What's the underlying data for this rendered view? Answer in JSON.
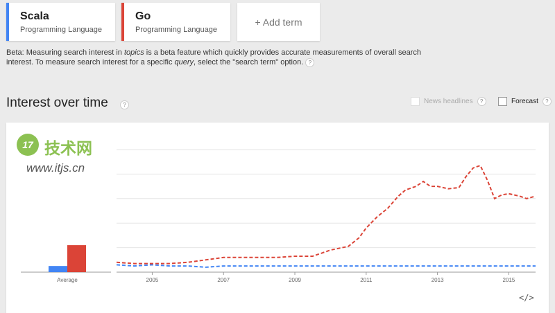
{
  "terms": [
    {
      "name": "Scala",
      "type": "Programming Language",
      "color": "#4285f4"
    },
    {
      "name": "Go",
      "type": "Programming Language",
      "color": "#db4437"
    }
  ],
  "add_term_label": "+ Add term",
  "beta_notice": {
    "prefix": "Beta: Measuring search interest in ",
    "em1": "topics",
    "mid": " is a beta feature which quickly provides accurate measurements of overall search interest. To measure search interest for a specific ",
    "em2": "query",
    "suffix": ", select the \"search term\" option."
  },
  "help_glyph": "?",
  "section_title": "Interest over time",
  "options": {
    "news_headlines": "News headlines",
    "forecast": "Forecast"
  },
  "watermark": {
    "badge": "17",
    "chinese": "技术网",
    "url": "www.itjs.cn"
  },
  "embed_icon": "</>",
  "chart_data": {
    "type": "line",
    "average_bars": {
      "label": "Average",
      "series": [
        {
          "name": "Scala",
          "value": 5
        },
        {
          "name": "Go",
          "value": 22
        }
      ]
    },
    "x_tick_labels": [
      "2005",
      "2007",
      "2009",
      "2011",
      "2013",
      "2015"
    ],
    "xlim": [
      2004,
      2015.75
    ],
    "ylim": [
      0,
      100
    ],
    "grid": true,
    "x": [
      2004,
      2004.5,
      2005,
      2005.5,
      2006,
      2006.5,
      2007,
      2007.5,
      2008,
      2008.5,
      2009,
      2009.5,
      2009.8,
      2010,
      2010.5,
      2010.8,
      2011,
      2011.3,
      2011.6,
      2011.9,
      2012.1,
      2012.4,
      2012.6,
      2012.8,
      2013,
      2013.3,
      2013.6,
      2013.8,
      2014,
      2014.2,
      2014.4,
      2014.6,
      2014.8,
      2015,
      2015.3,
      2015.5,
      2015.75
    ],
    "series": [
      {
        "name": "Scala",
        "color": "#4285f4",
        "dashed": true,
        "values": [
          6,
          5,
          6,
          5,
          5,
          4,
          5,
          5,
          5,
          5,
          5,
          5,
          5,
          5,
          5,
          5,
          5,
          5,
          5,
          5,
          5,
          5,
          5,
          5,
          5,
          5,
          5,
          5,
          5,
          5,
          5,
          5,
          5,
          5,
          5,
          5,
          5
        ]
      },
      {
        "name": "Go",
        "color": "#db4437",
        "dashed": true,
        "values": [
          8,
          7,
          7,
          7,
          8,
          10,
          12,
          12,
          12,
          12,
          13,
          13,
          16,
          18,
          21,
          28,
          36,
          45,
          52,
          62,
          67,
          70,
          74,
          70,
          70,
          68,
          69,
          78,
          85,
          87,
          75,
          60,
          63,
          64,
          62,
          60,
          62
        ]
      }
    ]
  }
}
